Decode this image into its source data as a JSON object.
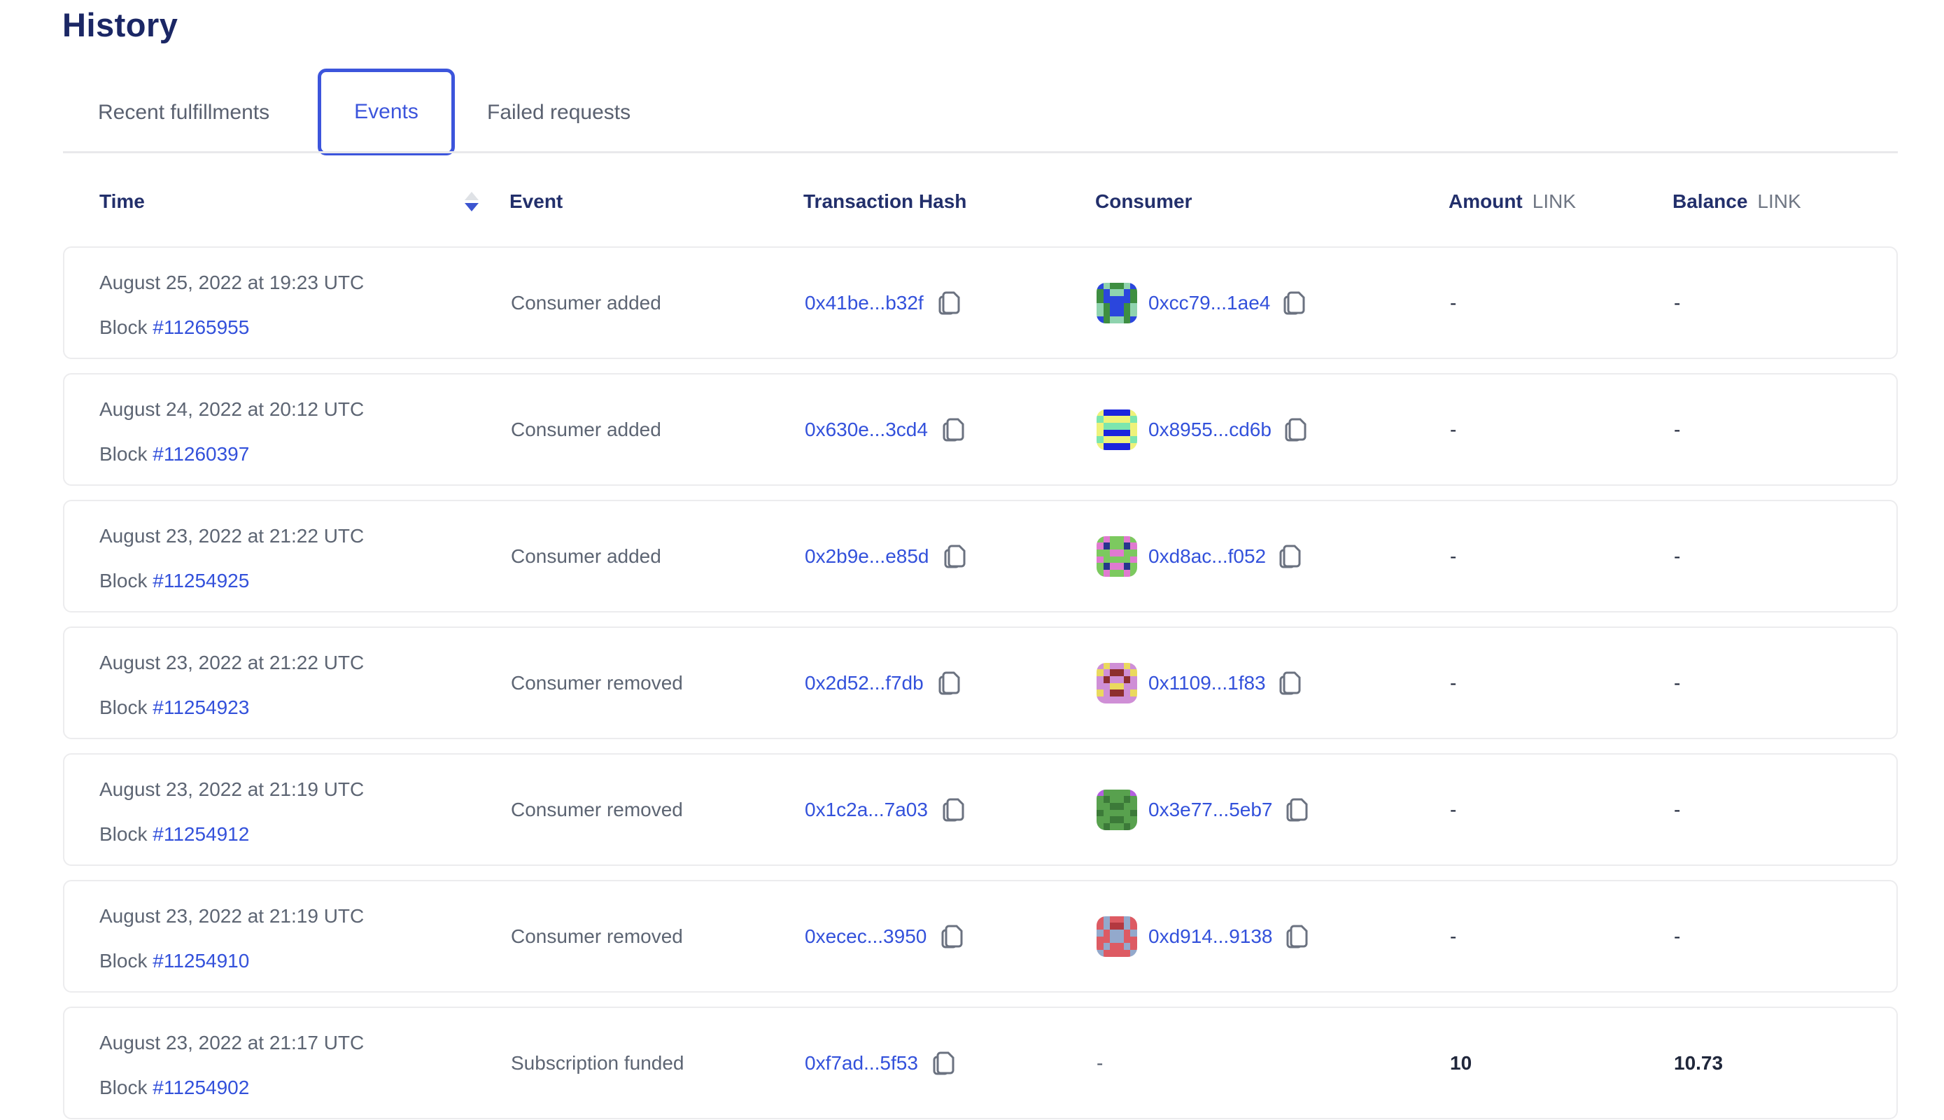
{
  "page": {
    "title": "History"
  },
  "tabs": {
    "items": [
      {
        "label": "Recent fulfillments",
        "active": false
      },
      {
        "label": "Events",
        "active": true
      },
      {
        "label": "Failed requests",
        "active": false
      }
    ]
  },
  "table": {
    "headers": {
      "time": "Time",
      "event": "Event",
      "tx_hash": "Transaction Hash",
      "consumer": "Consumer",
      "amount": "Amount",
      "balance": "Balance",
      "unit": "LINK"
    },
    "sort": {
      "column": "Time",
      "direction": "desc"
    },
    "block_label": "Block",
    "rows": [
      {
        "time": "August 25, 2022 at 19:23 UTC",
        "block": "#11265955",
        "event": "Consumer added",
        "tx_hash": "0x41be...b32f",
        "consumer": "0xcc79...1ae4",
        "amount": "-",
        "balance": "-",
        "avatar": {
          "colors": [
            "#3e8e41",
            "#2b46dd",
            "#8fd3ae"
          ],
          "grid": [
            "120021",
            "012210",
            "011110",
            "201102",
            "201102",
            "102201"
          ]
        }
      },
      {
        "time": "August 24, 2022 at 20:12 UTC",
        "block": "#11260397",
        "event": "Consumer added",
        "tx_hash": "0x630e...3cd4",
        "consumer": "0x8955...cd6b",
        "amount": "-",
        "balance": "-",
        "avatar": {
          "colors": [
            "#1b24dd",
            "#eef27a",
            "#7ce6ae"
          ],
          "grid": [
            "100001",
            "211112",
            "122221",
            "100001",
            "211112",
            "100001"
          ]
        }
      },
      {
        "time": "August 23, 2022 at 21:22 UTC",
        "block": "#11254925",
        "event": "Consumer added",
        "tx_hash": "0x2b9e...e85d",
        "consumer": "0xd8ac...f052",
        "amount": "-",
        "balance": "-",
        "avatar": {
          "colors": [
            "#7cc95f",
            "#e07ad0",
            "#27368d"
          ],
          "grid": [
            "010010",
            "120021",
            "001100",
            "100001",
            "021120",
            "010010"
          ]
        }
      },
      {
        "time": "August 23, 2022 at 21:22 UTC",
        "block": "#11254923",
        "event": "Consumer removed",
        "tx_hash": "0x2d52...f7db",
        "consumer": "0x1109...1f83",
        "amount": "-",
        "balance": "-",
        "avatar": {
          "colors": [
            "#cf8fd6",
            "#ead95e",
            "#8d2f2f"
          ],
          "grid": [
            "010010",
            "102201",
            "020020",
            "001100",
            "102201",
            "000000"
          ]
        }
      },
      {
        "time": "August 23, 2022 at 21:19 UTC",
        "block": "#11254912",
        "event": "Consumer removed",
        "tx_hash": "0x1c2a...7a03",
        "consumer": "0x3e77...5eb7",
        "amount": "-",
        "balance": "-",
        "avatar": {
          "colors": [
            "#58a14e",
            "#b45fe0",
            "#3c7a39"
          ],
          "grid": [
            "100001",
            "020020",
            "002200",
            "200002",
            "002200",
            "020020"
          ]
        }
      },
      {
        "time": "August 23, 2022 at 21:19 UTC",
        "block": "#11254910",
        "event": "Consumer removed",
        "tx_hash": "0xecec...3950",
        "consumer": "0xd914...9138",
        "amount": "-",
        "balance": "-",
        "avatar": {
          "colors": [
            "#dd5b63",
            "#93a9cc",
            "#b33840"
          ],
          "grid": [
            "010010",
            "012210",
            "101101",
            "001100",
            "010010",
            "100001"
          ]
        }
      },
      {
        "time": "August 23, 2022 at 21:17 UTC",
        "block": "#11254902",
        "event": "Subscription funded",
        "tx_hash": "0xf7ad...5f53",
        "consumer": "-",
        "amount": "10",
        "balance": "10.73",
        "avatar": null
      }
    ]
  },
  "colors": {
    "accent_blue": "#3c55dc",
    "link_blue": "#3351db",
    "heading_navy": "#1b2765",
    "text_gray": "#5d6573",
    "value_dark": "#20273b",
    "card_border": "#ececee",
    "divider": "#e9e9eb",
    "sort_arrow_inactive": "#dfe2e6",
    "sort_arrow_active": "#3c55d0",
    "copy_icon_gray": "#6b7280"
  }
}
